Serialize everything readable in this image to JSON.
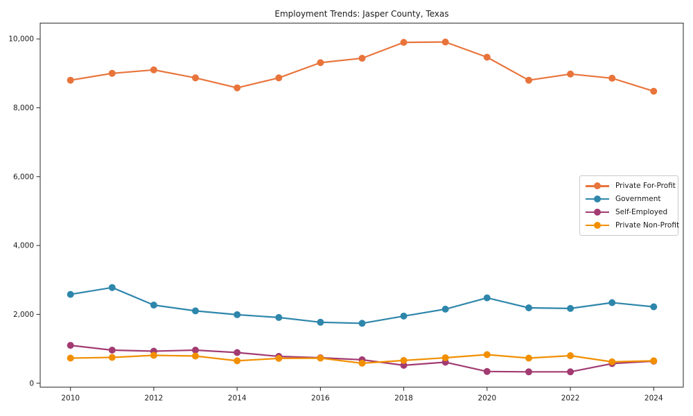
{
  "chart_data": {
    "type": "line",
    "title": "Employment Trends: Jasper County, Texas",
    "xlabel": "",
    "ylabel": "",
    "x": [
      2010,
      2011,
      2012,
      2013,
      2014,
      2015,
      2016,
      2017,
      2018,
      2019,
      2020,
      2021,
      2022,
      2023,
      2024
    ],
    "x_tick_labels": [
      "2010",
      "2012",
      "2014",
      "2016",
      "2018",
      "2020",
      "2022",
      "2024"
    ],
    "x_ticks": [
      2010,
      2012,
      2014,
      2016,
      2018,
      2020,
      2022,
      2024
    ],
    "y_tick_labels": [
      "0",
      "2,000",
      "4,000",
      "6,000",
      "8,000",
      "10,000"
    ],
    "y_ticks": [
      0,
      2000,
      4000,
      6000,
      8000,
      10000
    ],
    "ylim": [
      -150,
      10450
    ],
    "xlim": [
      2009.3,
      2024.7
    ],
    "grid": false,
    "legend_position": "center right",
    "series": [
      {
        "name": "Private For-Profit",
        "color": "#e8743b",
        "values": [
          8800,
          9000,
          9100,
          8870,
          8580,
          8870,
          9310,
          9440,
          9900,
          9910,
          9470,
          8800,
          8980,
          8860,
          8480
        ]
      },
      {
        "name": "Government",
        "color": "#2e86ab",
        "values": [
          2580,
          2780,
          2270,
          2100,
          1990,
          1910,
          1770,
          1740,
          1950,
          2150,
          2480,
          2190,
          2170,
          2340,
          2220
        ]
      },
      {
        "name": "Self-Employed",
        "color": "#a23b72",
        "values": [
          1100,
          960,
          930,
          960,
          890,
          780,
          740,
          680,
          520,
          610,
          340,
          330,
          330,
          570,
          640
        ]
      },
      {
        "name": "Private Non-Profit",
        "color": "#f18f01",
        "values": [
          730,
          750,
          810,
          790,
          650,
          720,
          730,
          580,
          660,
          740,
          830,
          730,
          800,
          620,
          650
        ]
      }
    ]
  }
}
